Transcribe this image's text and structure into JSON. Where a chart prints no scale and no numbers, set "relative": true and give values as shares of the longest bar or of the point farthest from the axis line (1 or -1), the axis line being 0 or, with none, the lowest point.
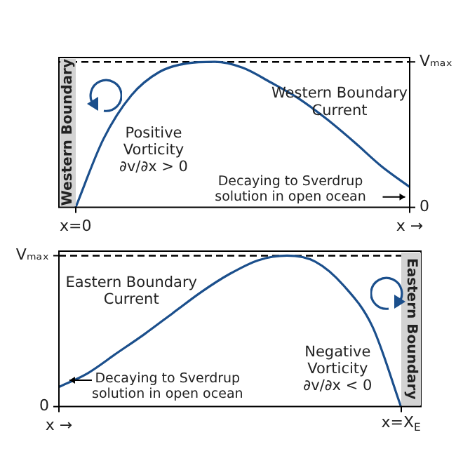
{
  "chart_data": [
    {
      "type": "line",
      "relative": true,
      "categories": [
        "x=0",
        null,
        null,
        null,
        null,
        null,
        null,
        null,
        null,
        null,
        null,
        null,
        "x →"
      ],
      "series": [
        {
          "color": "#1b4f8c",
          "values": [
            0,
            0.47,
            0.77,
            0.93,
            0.99,
            1.0,
            0.96,
            0.86,
            0.75,
            0.61,
            0.45,
            0.28,
            0.14
          ]
        }
      ],
      "ref_lines": [
        {
          "axis": "y",
          "value": 1,
          "label": "Vₘₐₓ",
          "color": "#000000",
          "line_style": "dashed"
        }
      ],
      "annotations": [
        "Western Boundary",
        "Western Boundary\nCurrent",
        "Positive\nVorticity\n∂v/∂x > 0",
        "Decaying to Sverdrup\nsolution in open ocean",
        "0"
      ],
      "grid": false,
      "legend": false
    },
    {
      "type": "line",
      "relative": true,
      "categories": [
        "x →",
        null,
        null,
        null,
        null,
        null,
        null,
        null,
        null,
        null,
        null,
        null,
        "x=X$_{E}$"
      ],
      "series": [
        {
          "color": "#1b4f8c",
          "values": [
            0.13,
            0.22,
            0.35,
            0.48,
            0.62,
            0.76,
            0.88,
            0.97,
            1.0,
            0.96,
            0.8,
            0.53,
            0
          ]
        }
      ],
      "ref_lines": [
        {
          "axis": "y",
          "value": 1,
          "label": "Vₘₐₓ",
          "color": "#000000",
          "line_style": "dashed"
        }
      ],
      "annotations": [
        "Eastern Boundary",
        "Eastern Boundary\nCurrent",
        "Negative\nVorticity\n∂v/∂x < 0",
        "Decaying to Sverdrup\nsolution in open ocean",
        "0"
      ],
      "grid": false,
      "legend": false
    }
  ]
}
